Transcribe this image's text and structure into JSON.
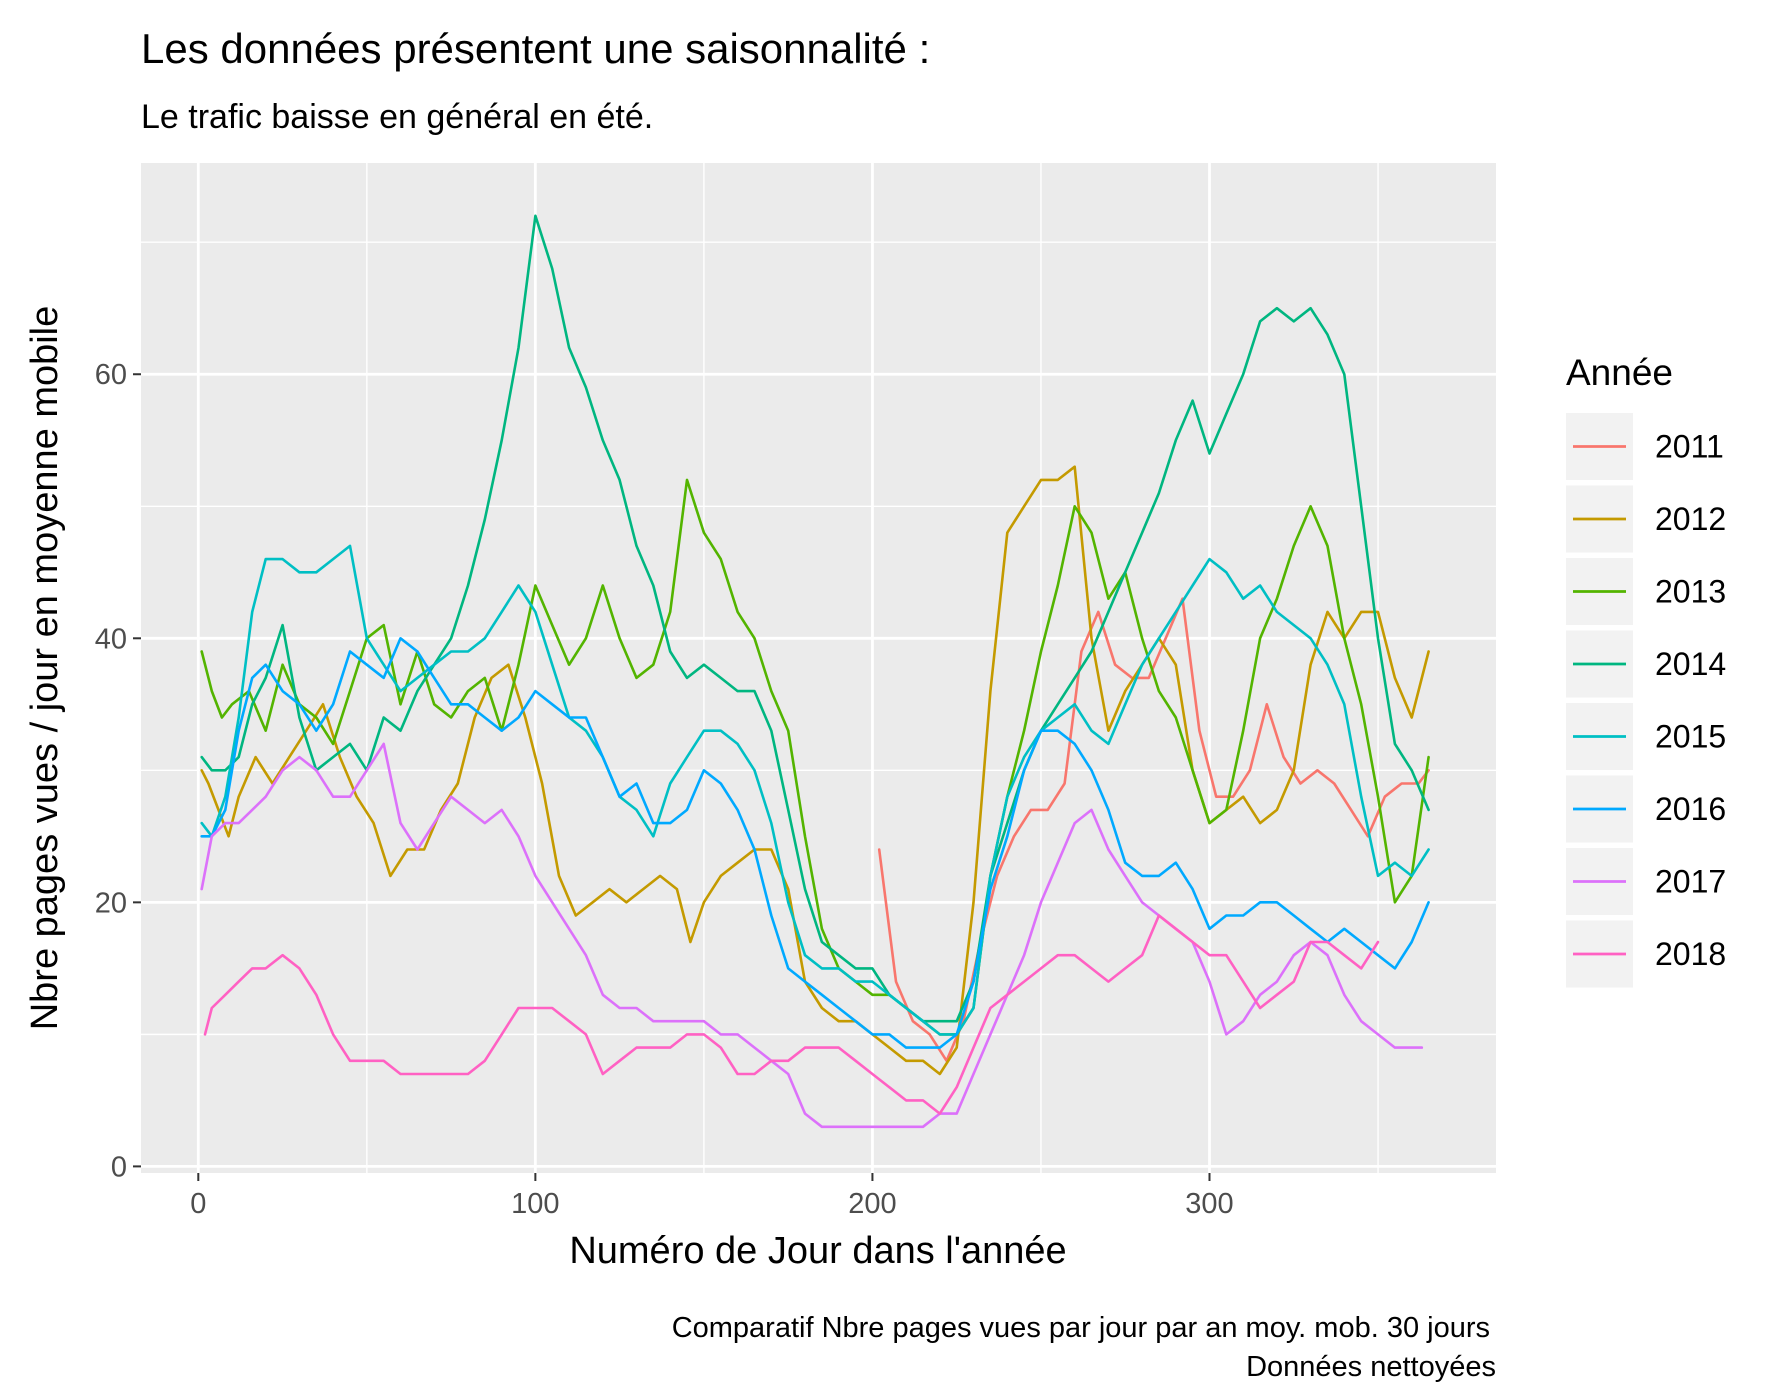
{
  "chart_data": {
    "type": "line",
    "title": "Les données présentent une saisonnalité :",
    "subtitle": "Le trafic baisse en général en été.",
    "xlabel": "Numéro de Jour dans l'année",
    "ylabel": "Nbre pages vues / jour en moyenne mobile",
    "caption": [
      "Comparatif Nbre pages vues par jour  par an moy. mob. 30 jours",
      "Données nettoyées"
    ],
    "xlim": [
      -17,
      385
    ],
    "ylim": [
      -0.5,
      76
    ],
    "x_ticks": [
      0,
      100,
      200,
      300
    ],
    "y_ticks": [
      0,
      20,
      40,
      60
    ],
    "grid": true,
    "legend_title": "Année",
    "legend_position": "right",
    "series": [
      {
        "name": "2011",
        "color": "#F8766D",
        "x": [
          202,
          207,
          212,
          217,
          222,
          227,
          232,
          237,
          242,
          247,
          252,
          257,
          262,
          267,
          272,
          277,
          282,
          287,
          292,
          297,
          302,
          307,
          312,
          317,
          322,
          327,
          332,
          337,
          342,
          347,
          352,
          357,
          362,
          365
        ],
        "y": [
          24,
          14,
          11,
          10,
          8,
          11,
          17,
          22,
          25,
          27,
          27,
          29,
          39,
          42,
          38,
          37,
          37,
          40,
          43,
          33,
          28,
          28,
          30,
          35,
          31,
          29,
          30,
          29,
          27,
          25,
          28,
          29,
          29,
          30
        ]
      },
      {
        "name": "2012",
        "color": "#C49A00",
        "x": [
          1,
          3,
          6,
          9,
          12,
          17,
          22,
          27,
          32,
          37,
          42,
          47,
          52,
          57,
          62,
          67,
          72,
          77,
          82,
          87,
          92,
          97,
          102,
          107,
          112,
          117,
          122,
          127,
          132,
          137,
          142,
          146,
          150,
          155,
          160,
          165,
          170,
          175,
          180,
          185,
          190,
          195,
          200,
          205,
          210,
          215,
          220,
          225,
          230,
          235,
          240,
          245,
          250,
          255,
          260,
          265,
          270,
          275,
          280,
          285,
          290,
          295,
          300,
          305,
          310,
          315,
          320,
          325,
          330,
          335,
          340,
          345,
          350,
          355,
          360,
          365
        ],
        "y": [
          30,
          29,
          27,
          25,
          28,
          31,
          29,
          31,
          33,
          35,
          31,
          28,
          26,
          22,
          24,
          24,
          27,
          29,
          34,
          37,
          38,
          34,
          29,
          22,
          19,
          20,
          21,
          20,
          21,
          22,
          21,
          17,
          20,
          22,
          23,
          24,
          24,
          21,
          14,
          12,
          11,
          11,
          10,
          9,
          8,
          8,
          7,
          9,
          20,
          36,
          48,
          50,
          52,
          52,
          53,
          40,
          33,
          36,
          38,
          40,
          38,
          30,
          26,
          27,
          28,
          26,
          27,
          30,
          38,
          42,
          40,
          42,
          42,
          37,
          34,
          39
        ]
      },
      {
        "name": "2013",
        "color": "#53B400",
        "x": [
          1,
          4,
          7,
          10,
          15,
          20,
          25,
          30,
          35,
          40,
          45,
          50,
          55,
          60,
          65,
          70,
          75,
          80,
          85,
          90,
          95,
          100,
          105,
          110,
          115,
          120,
          125,
          130,
          135,
          140,
          145,
          150,
          155,
          160,
          165,
          170,
          175,
          180,
          185,
          190,
          195,
          200,
          205,
          210,
          215,
          220,
          225,
          230,
          235,
          240,
          245,
          250,
          255,
          260,
          265,
          270,
          275,
          280,
          285,
          290,
          295,
          300,
          305,
          310,
          315,
          320,
          325,
          330,
          335,
          340,
          345,
          350,
          355,
          360,
          365
        ],
        "y": [
          39,
          36,
          34,
          35,
          36,
          33,
          38,
          35,
          34,
          32,
          36,
          40,
          41,
          35,
          39,
          35,
          34,
          36,
          37,
          33,
          38,
          44,
          41,
          38,
          40,
          44,
          40,
          37,
          38,
          42,
          52,
          48,
          46,
          42,
          40,
          36,
          33,
          25,
          18,
          15,
          14,
          13,
          13,
          12,
          11,
          10,
          10,
          12,
          22,
          28,
          33,
          39,
          44,
          50,
          48,
          43,
          45,
          40,
          36,
          34,
          30,
          26,
          27,
          33,
          40,
          43,
          47,
          50,
          47,
          40,
          35,
          28,
          20,
          22,
          31
        ]
      },
      {
        "name": "2014",
        "color": "#00B680",
        "x": [
          1,
          4,
          8,
          12,
          16,
          20,
          25,
          30,
          35,
          40,
          45,
          50,
          55,
          60,
          65,
          70,
          75,
          80,
          85,
          90,
          95,
          100,
          105,
          110,
          115,
          120,
          125,
          130,
          135,
          140,
          145,
          150,
          155,
          160,
          165,
          170,
          175,
          180,
          185,
          190,
          195,
          200,
          205,
          210,
          215,
          220,
          225,
          230,
          235,
          240,
          245,
          250,
          255,
          260,
          265,
          270,
          275,
          280,
          285,
          290,
          295,
          300,
          305,
          310,
          315,
          320,
          325,
          330,
          335,
          340,
          345,
          350,
          355,
          360,
          365
        ],
        "y": [
          31,
          30,
          30,
          31,
          35,
          37,
          41,
          34,
          30,
          31,
          32,
          30,
          34,
          33,
          36,
          38,
          40,
          44,
          49,
          55,
          62,
          72,
          68,
          62,
          59,
          55,
          52,
          47,
          44,
          39,
          37,
          38,
          37,
          36,
          36,
          33,
          27,
          21,
          17,
          16,
          15,
          15,
          13,
          12,
          11,
          11,
          11,
          14,
          22,
          26,
          30,
          33,
          35,
          37,
          39,
          42,
          45,
          48,
          51,
          55,
          58,
          54,
          57,
          60,
          64,
          65,
          64,
          65,
          63,
          60,
          50,
          40,
          32,
          30,
          27
        ]
      },
      {
        "name": "2015",
        "color": "#00BFC4",
        "x": [
          1,
          4,
          8,
          12,
          16,
          20,
          25,
          30,
          35,
          40,
          45,
          50,
          55,
          60,
          65,
          70,
          75,
          80,
          85,
          90,
          95,
          100,
          105,
          110,
          115,
          120,
          125,
          130,
          135,
          140,
          145,
          150,
          155,
          160,
          165,
          170,
          175,
          180,
          185,
          190,
          195,
          200,
          205,
          210,
          215,
          220,
          225,
          230,
          235,
          240,
          245,
          250,
          255,
          260,
          265,
          270,
          275,
          280,
          285,
          290,
          295,
          300,
          305,
          310,
          315,
          320,
          325,
          330,
          335,
          340,
          345,
          350,
          355,
          360,
          365
        ],
        "y": [
          26,
          25,
          28,
          34,
          42,
          46,
          46,
          45,
          45,
          46,
          47,
          40,
          38,
          36,
          37,
          38,
          39,
          39,
          40,
          42,
          44,
          42,
          38,
          34,
          33,
          31,
          28,
          27,
          25,
          29,
          31,
          33,
          33,
          32,
          30,
          26,
          20,
          16,
          15,
          15,
          14,
          14,
          13,
          12,
          11,
          10,
          10,
          12,
          22,
          28,
          31,
          33,
          34,
          35,
          33,
          32,
          35,
          38,
          40,
          42,
          44,
          46,
          45,
          43,
          44,
          42,
          41,
          40,
          38,
          35,
          28,
          22,
          23,
          22,
          24
        ]
      },
      {
        "name": "2016",
        "color": "#00A9FF",
        "x": [
          1,
          4,
          8,
          12,
          16,
          20,
          25,
          30,
          35,
          40,
          45,
          50,
          55,
          60,
          65,
          70,
          75,
          80,
          85,
          90,
          95,
          100,
          105,
          110,
          115,
          120,
          125,
          130,
          135,
          140,
          145,
          150,
          155,
          160,
          165,
          170,
          175,
          180,
          185,
          190,
          195,
          200,
          205,
          210,
          215,
          220,
          225,
          230,
          235,
          240,
          245,
          250,
          255,
          260,
          265,
          270,
          275,
          280,
          285,
          290,
          295,
          300,
          305,
          310,
          315,
          320,
          325,
          330,
          335,
          340,
          345,
          350,
          355,
          360,
          365
        ],
        "y": [
          25,
          25,
          27,
          33,
          37,
          38,
          36,
          35,
          33,
          35,
          39,
          38,
          37,
          40,
          39,
          37,
          35,
          35,
          34,
          33,
          34,
          36,
          35,
          34,
          34,
          31,
          28,
          29,
          26,
          26,
          27,
          30,
          29,
          27,
          24,
          19,
          15,
          14,
          13,
          12,
          11,
          10,
          10,
          9,
          9,
          9,
          10,
          14,
          21,
          25,
          30,
          33,
          33,
          32,
          30,
          27,
          23,
          22,
          22,
          23,
          21,
          18,
          19,
          19,
          20,
          20,
          19,
          18,
          17,
          18,
          17,
          16,
          15,
          17,
          20
        ]
      },
      {
        "name": "2017",
        "color": "#DC71FA",
        "x": [
          1,
          4,
          8,
          12,
          16,
          20,
          25,
          30,
          35,
          40,
          45,
          50,
          55,
          60,
          65,
          70,
          75,
          80,
          85,
          90,
          95,
          100,
          105,
          110,
          115,
          120,
          125,
          130,
          135,
          140,
          145,
          150,
          155,
          160,
          165,
          170,
          175,
          180,
          185,
          190,
          195,
          200,
          205,
          210,
          215,
          220,
          225,
          230,
          235,
          240,
          245,
          250,
          255,
          260,
          265,
          270,
          275,
          280,
          285,
          290,
          295,
          300,
          305,
          310,
          315,
          320,
          325,
          330,
          335,
          340,
          345,
          350,
          355,
          360,
          363
        ],
        "y": [
          21,
          25,
          26,
          26,
          27,
          28,
          30,
          31,
          30,
          28,
          28,
          30,
          32,
          26,
          24,
          26,
          28,
          27,
          26,
          27,
          25,
          22,
          20,
          18,
          16,
          13,
          12,
          12,
          11,
          11,
          11,
          11,
          10,
          10,
          9,
          8,
          7,
          4,
          3,
          3,
          3,
          3,
          3,
          3,
          3,
          4,
          4,
          7,
          10,
          13,
          16,
          20,
          23,
          26,
          27,
          24,
          22,
          20,
          19,
          18,
          17,
          14,
          10,
          11,
          13,
          14,
          16,
          17,
          16,
          13,
          11,
          10,
          9,
          9,
          9
        ]
      },
      {
        "name": "2018",
        "color": "#FF61C3",
        "x": [
          2,
          4,
          8,
          12,
          16,
          20,
          25,
          30,
          35,
          40,
          45,
          50,
          55,
          60,
          65,
          70,
          75,
          80,
          85,
          90,
          95,
          100,
          105,
          110,
          115,
          120,
          125,
          130,
          135,
          140,
          145,
          150,
          155,
          160,
          165,
          170,
          175,
          180,
          185,
          190,
          195,
          200,
          205,
          210,
          215,
          220,
          225,
          230,
          235,
          240,
          245,
          250,
          255,
          260,
          265,
          270,
          275,
          280,
          285,
          290,
          295,
          300,
          305,
          310,
          315,
          320,
          325,
          330,
          335,
          340,
          345,
          350
        ],
        "y": [
          10,
          12,
          13,
          14,
          15,
          15,
          16,
          15,
          13,
          10,
          8,
          8,
          8,
          7,
          7,
          7,
          7,
          7,
          8,
          10,
          12,
          12,
          12,
          11,
          10,
          7,
          8,
          9,
          9,
          9,
          10,
          10,
          9,
          7,
          7,
          8,
          8,
          9,
          9,
          9,
          8,
          7,
          6,
          5,
          5,
          4,
          6,
          9,
          12,
          13,
          14,
          15,
          16,
          16,
          15,
          14,
          15,
          16,
          19,
          18,
          17,
          16,
          16,
          14,
          12,
          13,
          14,
          17,
          17,
          16,
          15,
          17
        ]
      }
    ]
  }
}
